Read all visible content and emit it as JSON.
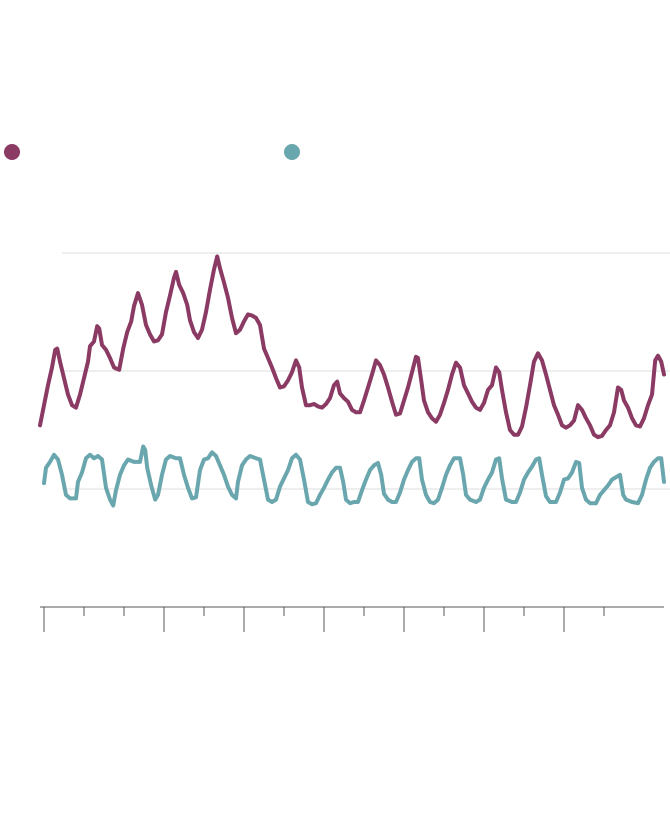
{
  "chart_data": {
    "type": "line",
    "xlim": [
      -0.1,
      15.5
    ],
    "xticks": [
      0,
      1,
      2,
      3,
      4,
      5,
      6,
      7,
      8,
      9,
      10,
      11,
      12,
      13,
      14
    ],
    "major_xticks": [
      0,
      3,
      5,
      7,
      9,
      11,
      13
    ],
    "ylim": [
      0,
      3
    ],
    "yticks": [
      0,
      1,
      2,
      3
    ],
    "grid": true,
    "series": [
      {
        "color": "#8a3a63",
        "x": [
          -0.1,
          0,
          0.1,
          0.2,
          0.28,
          0.33,
          0.4,
          0.5,
          0.6,
          0.7,
          0.8,
          0.9,
          1.0,
          1.1,
          1.15,
          1.25,
          1.33,
          1.38,
          1.45,
          1.55,
          1.65,
          1.75,
          1.88,
          1.98,
          2.08,
          2.18,
          2.25,
          2.35,
          2.45,
          2.55,
          2.65,
          2.75,
          2.85,
          2.95,
          3.05,
          3.15,
          3.25,
          3.3,
          3.38,
          3.48,
          3.58,
          3.65,
          3.75,
          3.85,
          3.95,
          4.05,
          4.15,
          4.25,
          4.33,
          4.4,
          4.5,
          4.6,
          4.7,
          4.8,
          4.9,
          5.0,
          5.1,
          5.2,
          5.3,
          5.4,
          5.5,
          5.6,
          5.7,
          5.8,
          5.9,
          6.0,
          6.1,
          6.2,
          6.3,
          6.38,
          6.45,
          6.55,
          6.65,
          6.75,
          6.85,
          6.95,
          7.05,
          7.15,
          7.25,
          7.33,
          7.4,
          7.5,
          7.6,
          7.7,
          7.8,
          7.9,
          8.0,
          8.1,
          8.2,
          8.3,
          8.4,
          8.5,
          8.6,
          8.7,
          8.8,
          8.9,
          9.0,
          9.1,
          9.2,
          9.3,
          9.35,
          9.43,
          9.5,
          9.6,
          9.7,
          9.8,
          9.9,
          10.0,
          10.1,
          10.2,
          10.3,
          10.4,
          10.5,
          10.6,
          10.7,
          10.8,
          10.9,
          11.0,
          11.1,
          11.2,
          11.3,
          11.38,
          11.45,
          11.55,
          11.65,
          11.75,
          11.85,
          11.95,
          12.05,
          12.15,
          12.25,
          12.35,
          12.45,
          12.55,
          12.65,
          12.75,
          12.85,
          12.95,
          13.05,
          13.15,
          13.25,
          13.35,
          13.45,
          13.55,
          13.65,
          13.75,
          13.85,
          13.95,
          14.05,
          14.15,
          14.25,
          14.35,
          14.43,
          14.5,
          14.6,
          14.7,
          14.8,
          14.9,
          15.0,
          15.1,
          15.2,
          15.28,
          15.35,
          15.43,
          15.5
        ],
        "values": [
          1.54,
          1.71,
          1.88,
          2.03,
          2.18,
          2.19,
          2.08,
          1.94,
          1.8,
          1.71,
          1.69,
          1.8,
          1.94,
          2.08,
          2.21,
          2.25,
          2.38,
          2.36,
          2.22,
          2.18,
          2.11,
          2.03,
          2.01,
          2.19,
          2.33,
          2.42,
          2.55,
          2.66,
          2.56,
          2.39,
          2.31,
          2.25,
          2.26,
          2.31,
          2.5,
          2.64,
          2.79,
          2.84,
          2.73,
          2.66,
          2.56,
          2.43,
          2.33,
          2.28,
          2.35,
          2.5,
          2.69,
          2.86,
          2.97,
          2.87,
          2.75,
          2.62,
          2.45,
          2.32,
          2.35,
          2.42,
          2.48,
          2.47,
          2.45,
          2.39,
          2.19,
          2.11,
          2.03,
          1.94,
          1.86,
          1.87,
          1.92,
          1.99,
          2.09,
          2.03,
          1.86,
          1.71,
          1.71,
          1.72,
          1.7,
          1.69,
          1.72,
          1.77,
          1.88,
          1.91,
          1.81,
          1.77,
          1.74,
          1.67,
          1.65,
          1.65,
          1.75,
          1.86,
          1.97,
          2.09,
          2.05,
          1.97,
          1.86,
          1.74,
          1.63,
          1.64,
          1.75,
          1.86,
          1.99,
          2.12,
          2.11,
          1.92,
          1.75,
          1.65,
          1.6,
          1.57,
          1.63,
          1.73,
          1.84,
          1.97,
          2.07,
          2.03,
          1.88,
          1.81,
          1.74,
          1.69,
          1.67,
          1.73,
          1.84,
          1.88,
          2.03,
          1.99,
          1.84,
          1.65,
          1.5,
          1.46,
          1.46,
          1.53,
          1.69,
          1.88,
          2.08,
          2.15,
          2.09,
          1.97,
          1.84,
          1.71,
          1.63,
          1.54,
          1.52,
          1.54,
          1.58,
          1.71,
          1.67,
          1.6,
          1.54,
          1.46,
          1.44,
          1.45,
          1.5,
          1.54,
          1.65,
          1.86,
          1.84,
          1.75,
          1.69,
          1.6,
          1.54,
          1.53,
          1.6,
          1.71,
          1.8,
          2.09,
          2.13,
          2.08,
          1.97
        ]
      },
      {
        "color": "#6aa6ae",
        "x": [
          0,
          0.05,
          0.15,
          0.25,
          0.35,
          0.45,
          0.55,
          0.65,
          0.8,
          0.85,
          0.95,
          1.05,
          1.15,
          1.25,
          1.35,
          1.45,
          1.55,
          1.65,
          1.73,
          1.8,
          1.9,
          2.0,
          2.1,
          2.25,
          2.4,
          2.48,
          2.53,
          2.58,
          2.68,
          2.78,
          2.85,
          2.95,
          3.05,
          3.15,
          3.3,
          3.4,
          3.5,
          3.6,
          3.7,
          3.8,
          3.9,
          4.0,
          4.1,
          4.2,
          4.3,
          4.4,
          4.5,
          4.6,
          4.7,
          4.8,
          4.85,
          4.95,
          5.05,
          5.15,
          5.3,
          5.4,
          5.5,
          5.6,
          5.7,
          5.8,
          5.9,
          6.0,
          6.1,
          6.2,
          6.3,
          6.4,
          6.5,
          6.6,
          6.7,
          6.8,
          6.9,
          7.0,
          7.1,
          7.2,
          7.3,
          7.4,
          7.48,
          7.55,
          7.65,
          7.75,
          7.85,
          7.95,
          8.05,
          8.15,
          8.25,
          8.35,
          8.43,
          8.5,
          8.6,
          8.7,
          8.8,
          8.9,
          9.0,
          9.1,
          9.2,
          9.3,
          9.38,
          9.45,
          9.55,
          9.65,
          9.75,
          9.85,
          9.95,
          10.05,
          10.15,
          10.25,
          10.4,
          10.48,
          10.55,
          10.65,
          10.8,
          10.9,
          11.0,
          11.1,
          11.2,
          11.3,
          11.38,
          11.45,
          11.55,
          11.7,
          11.8,
          11.9,
          12.0,
          12.1,
          12.2,
          12.3,
          12.38,
          12.45,
          12.55,
          12.65,
          12.8,
          12.9,
          13.0,
          13.1,
          13.2,
          13.3,
          13.38,
          13.45,
          13.55,
          13.65,
          13.8,
          13.9,
          14.0,
          14.1,
          14.2,
          14.3,
          14.4,
          14.48,
          14.55,
          14.7,
          14.85,
          14.95,
          15.05,
          15.15,
          15.25,
          15.35,
          15.43,
          15.5
        ],
        "values": [
          1.05,
          1.18,
          1.23,
          1.29,
          1.25,
          1.12,
          0.95,
          0.92,
          0.92,
          1.06,
          1.14,
          1.26,
          1.29,
          1.26,
          1.28,
          1.25,
          1.01,
          0.91,
          0.86,
          0.99,
          1.12,
          1.2,
          1.25,
          1.23,
          1.23,
          1.36,
          1.33,
          1.18,
          1.03,
          0.91,
          0.95,
          1.12,
          1.25,
          1.28,
          1.26,
          1.26,
          1.12,
          1.01,
          0.92,
          0.93,
          1.16,
          1.25,
          1.26,
          1.31,
          1.28,
          1.2,
          1.12,
          1.02,
          0.95,
          0.92,
          1.06,
          1.2,
          1.25,
          1.28,
          1.26,
          1.25,
          1.08,
          0.91,
          0.89,
          0.91,
          1.02,
          1.09,
          1.16,
          1.26,
          1.29,
          1.25,
          1.08,
          0.89,
          0.87,
          0.88,
          0.95,
          1.01,
          1.08,
          1.14,
          1.18,
          1.18,
          1.06,
          0.91,
          0.88,
          0.89,
          0.89,
          0.99,
          1.08,
          1.16,
          1.2,
          1.22,
          1.12,
          0.96,
          0.91,
          0.89,
          0.89,
          0.97,
          1.08,
          1.16,
          1.23,
          1.26,
          1.26,
          1.08,
          0.95,
          0.89,
          0.88,
          0.91,
          1.01,
          1.12,
          1.2,
          1.26,
          1.26,
          1.12,
          0.95,
          0.91,
          0.89,
          0.91,
          1.01,
          1.08,
          1.14,
          1.25,
          1.26,
          1.09,
          0.91,
          0.89,
          0.89,
          0.97,
          1.08,
          1.14,
          1.19,
          1.25,
          1.26,
          1.12,
          0.94,
          0.89,
          0.89,
          0.97,
          1.08,
          1.09,
          1.14,
          1.23,
          1.22,
          1.01,
          0.91,
          0.88,
          0.88,
          0.95,
          0.99,
          1.03,
          1.08,
          1.1,
          1.12,
          0.95,
          0.91,
          0.89,
          0.88,
          0.95,
          1.08,
          1.18,
          1.23,
          1.26,
          1.26,
          1.06
        ]
      }
    ]
  }
}
